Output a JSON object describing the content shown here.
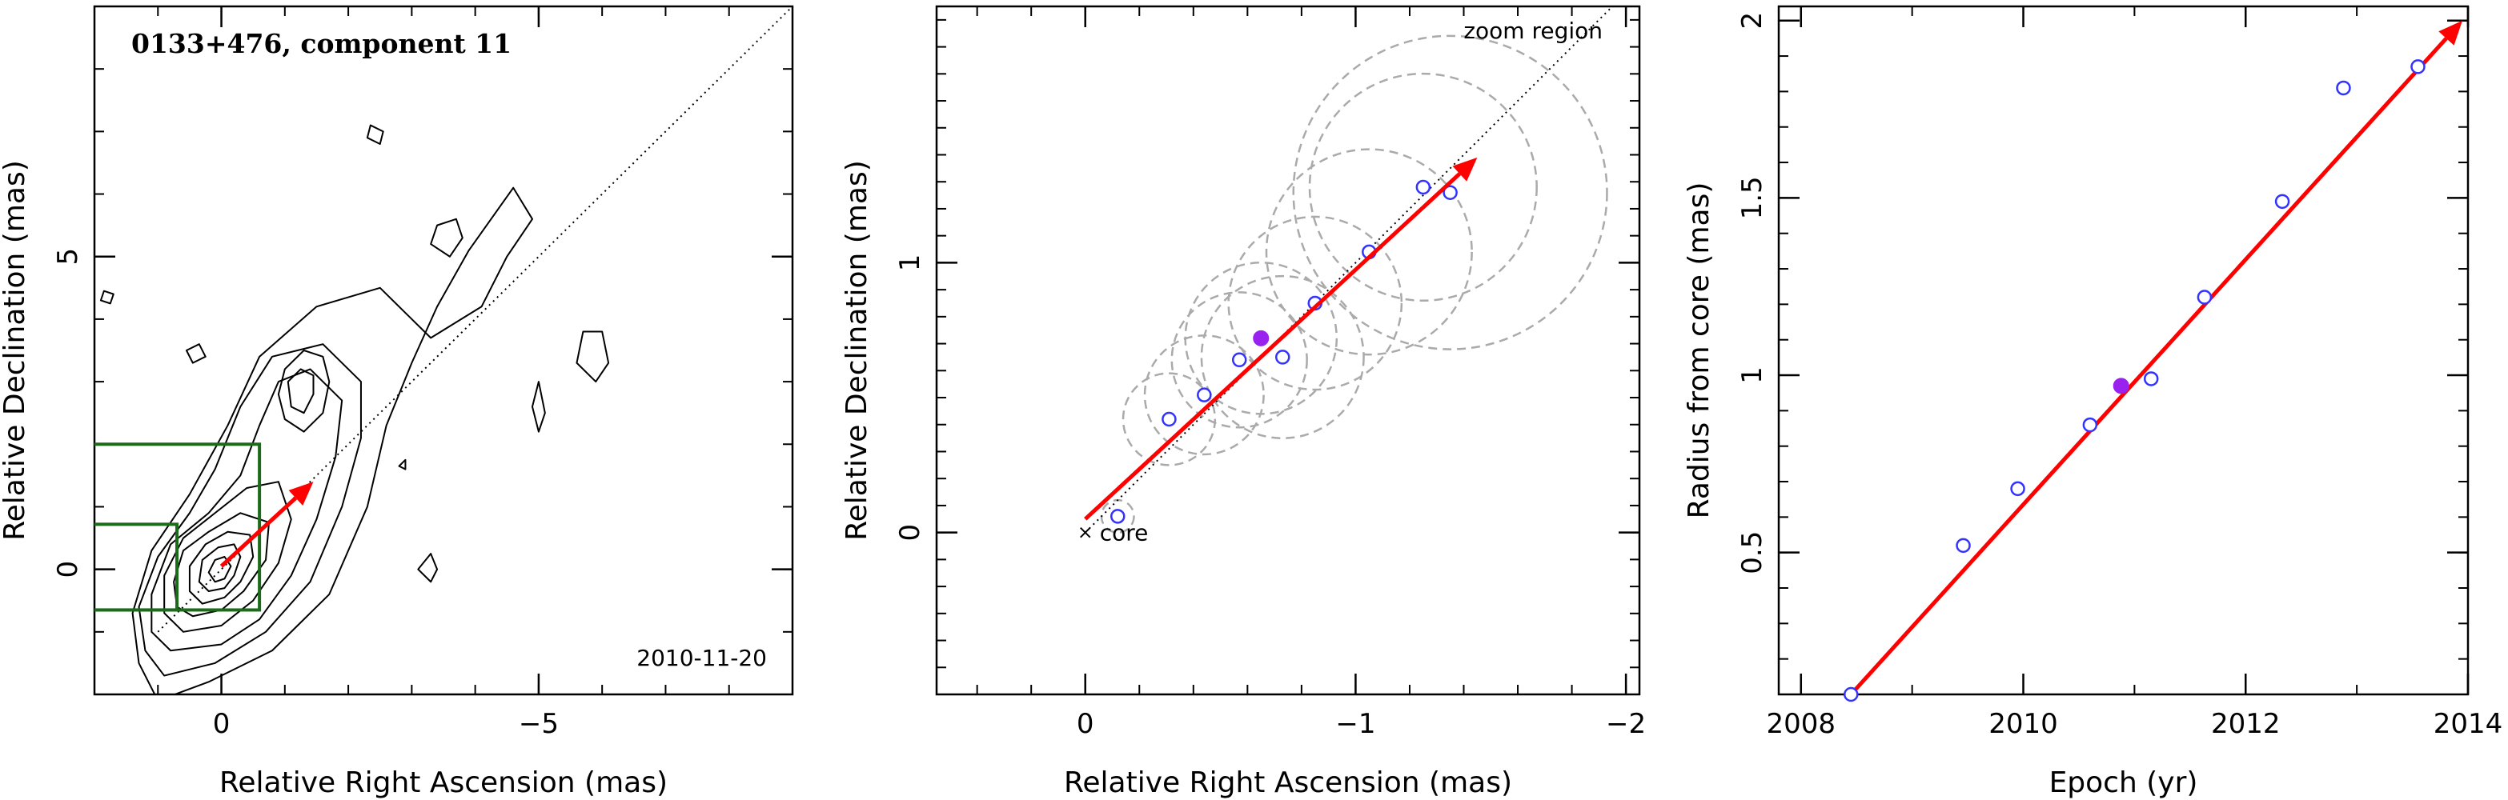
{
  "chart_data": [
    {
      "type": "contour",
      "title": "0133+476, component 11",
      "date": "2010-11-20",
      "xlabel": "Relative Right Ascension (mas)",
      "ylabel": "Relative Declination (mas)",
      "xlim": [
        2,
        -9
      ],
      "ylim": [
        -2,
        9
      ],
      "xticks": [
        0,
        -5
      ],
      "xtick_labels": [
        "0",
        "−5"
      ],
      "yticks": [
        0,
        5
      ],
      "ytick_labels": [
        "0",
        "5"
      ],
      "line_color": "#000000",
      "box_color": "#1b6b1b",
      "arrow_color": "#ff0000",
      "contours": [
        {
          "points": [
            [
              1.0,
              -2.1
            ],
            [
              0.2,
              -1.8
            ],
            [
              -0.8,
              -1.3
            ],
            [
              -1.7,
              -0.4
            ],
            [
              -2.3,
              1.0
            ],
            [
              -2.6,
              2.3
            ],
            [
              -3.0,
              3.3
            ],
            [
              -3.4,
              4.2
            ],
            [
              -3.9,
              5.1
            ],
            [
              -4.6,
              6.1
            ],
            [
              -4.9,
              5.6
            ],
            [
              -4.5,
              5.0
            ],
            [
              -4.1,
              4.2
            ],
            [
              -3.3,
              3.7
            ],
            [
              -2.5,
              4.5
            ],
            [
              -1.5,
              4.2
            ],
            [
              -0.6,
              3.4
            ],
            [
              -0.1,
              2.3
            ],
            [
              0.5,
              1.2
            ],
            [
              1.1,
              0.3
            ],
            [
              1.4,
              -0.7
            ],
            [
              1.3,
              -1.5
            ]
          ]
        },
        {
          "points": [
            [
              0.9,
              -1.7
            ],
            [
              0.1,
              -1.5
            ],
            [
              -0.7,
              -1.0
            ],
            [
              -1.4,
              -0.2
            ],
            [
              -1.9,
              1.0
            ],
            [
              -2.2,
              2.1
            ],
            [
              -2.2,
              3.0
            ],
            [
              -1.6,
              3.6
            ],
            [
              -0.8,
              3.4
            ],
            [
              -0.3,
              2.6
            ],
            [
              0.1,
              1.6
            ],
            [
              0.5,
              0.9
            ],
            [
              1.0,
              0.2
            ],
            [
              1.3,
              -0.6
            ],
            [
              1.2,
              -1.3
            ]
          ]
        },
        {
          "points": [
            [
              0.8,
              -1.3
            ],
            [
              0.0,
              -1.2
            ],
            [
              -0.6,
              -0.8
            ],
            [
              -1.1,
              -0.1
            ],
            [
              -1.5,
              0.8
            ],
            [
              -1.8,
              1.8
            ],
            [
              -1.9,
              2.7
            ],
            [
              -1.4,
              3.2
            ],
            [
              -0.9,
              3.0
            ],
            [
              -0.6,
              2.3
            ],
            [
              -0.3,
              1.5
            ],
            [
              0.2,
              0.9
            ],
            [
              0.8,
              0.4
            ],
            [
              1.1,
              -0.4
            ],
            [
              1.1,
              -1.0
            ]
          ]
        },
        {
          "points": [
            [
              0.6,
              -1.0
            ],
            [
              0.0,
              -0.9
            ],
            [
              -0.5,
              -0.5
            ],
            [
              -0.9,
              0.1
            ],
            [
              -1.1,
              0.8
            ],
            [
              -0.9,
              1.4
            ],
            [
              -0.4,
              1.3
            ],
            [
              0.1,
              0.9
            ],
            [
              0.6,
              0.5
            ],
            [
              0.9,
              -0.1
            ],
            [
              0.9,
              -0.7
            ]
          ]
        },
        {
          "points": [
            [
              0.45,
              -0.75
            ],
            [
              0.0,
              -0.65
            ],
            [
              -0.35,
              -0.35
            ],
            [
              -0.7,
              0.15
            ],
            [
              -0.75,
              0.75
            ],
            [
              -0.3,
              0.9
            ],
            [
              0.2,
              0.6
            ],
            [
              0.6,
              0.3
            ],
            [
              0.75,
              -0.2
            ],
            [
              0.7,
              -0.6
            ]
          ]
        },
        {
          "points": [
            [
              0.3,
              -0.55
            ],
            [
              -0.05,
              -0.45
            ],
            [
              -0.3,
              -0.2
            ],
            [
              -0.5,
              0.2
            ],
            [
              -0.45,
              0.55
            ],
            [
              -0.1,
              0.6
            ],
            [
              0.25,
              0.4
            ],
            [
              0.5,
              0.05
            ],
            [
              0.5,
              -0.35
            ]
          ]
        },
        {
          "points": [
            [
              0.2,
              -0.35
            ],
            [
              -0.05,
              -0.3
            ],
            [
              -0.2,
              -0.1
            ],
            [
              -0.3,
              0.2
            ],
            [
              -0.2,
              0.4
            ],
            [
              0.05,
              0.35
            ],
            [
              0.3,
              0.15
            ],
            [
              0.35,
              -0.2
            ]
          ]
        },
        {
          "points": [
            [
              0.1,
              -0.2
            ],
            [
              -0.05,
              -0.15
            ],
            [
              -0.15,
              0.05
            ],
            [
              -0.05,
              0.2
            ],
            [
              0.1,
              0.15
            ],
            [
              0.2,
              -0.05
            ]
          ]
        },
        {
          "points": [
            [
              -1.0,
              2.4
            ],
            [
              -1.3,
              2.2
            ],
            [
              -1.6,
              2.5
            ],
            [
              -1.7,
              3.0
            ],
            [
              -1.6,
              3.4
            ],
            [
              -1.3,
              3.5
            ],
            [
              -1.0,
              3.2
            ],
            [
              -0.9,
              2.8
            ]
          ]
        },
        {
          "points": [
            [
              -1.1,
              2.6
            ],
            [
              -1.3,
              2.5
            ],
            [
              -1.45,
              2.8
            ],
            [
              -1.45,
              3.1
            ],
            [
              -1.25,
              3.2
            ],
            [
              -1.05,
              3.0
            ]
          ]
        },
        {
          "points": [
            [
              -3.3,
              5.2
            ],
            [
              -3.6,
              5.0
            ],
            [
              -3.8,
              5.3
            ],
            [
              -3.7,
              5.6
            ],
            [
              -3.4,
              5.5
            ]
          ]
        },
        {
          "points": [
            [
              1.9,
              4.3
            ],
            [
              1.75,
              4.25
            ],
            [
              1.7,
              4.4
            ],
            [
              1.85,
              4.45
            ]
          ]
        },
        {
          "points": [
            [
              0.25,
              3.4
            ],
            [
              0.45,
              3.3
            ],
            [
              0.55,
              3.5
            ],
            [
              0.35,
              3.6
            ]
          ]
        },
        {
          "points": [
            [
              -5.6,
              3.3
            ],
            [
              -5.9,
              3.0
            ],
            [
              -6.1,
              3.3
            ],
            [
              -6.0,
              3.8
            ],
            [
              -5.7,
              3.8
            ]
          ]
        },
        {
          "points": [
            [
              -4.9,
              2.6
            ],
            [
              -5.0,
              2.2
            ],
            [
              -5.1,
              2.5
            ],
            [
              -5.0,
              3.0
            ]
          ]
        },
        {
          "points": [
            [
              -3.1,
              0.0
            ],
            [
              -3.3,
              -0.2
            ],
            [
              -3.4,
              0.0
            ],
            [
              -3.3,
              0.25
            ]
          ]
        },
        {
          "points": [
            [
              -2.3,
              6.9
            ],
            [
              -2.5,
              6.8
            ],
            [
              -2.55,
              7.0
            ],
            [
              -2.35,
              7.1
            ]
          ]
        },
        {
          "points": [
            [
              -2.8,
              1.65
            ],
            [
              -2.9,
              1.6
            ],
            [
              -2.9,
              1.75
            ]
          ]
        }
      ],
      "boxes": [
        [
          -0.6,
          -0.65,
          2.05,
          2.0
        ],
        [
          0.7,
          -0.65,
          2.05,
          0.72
        ]
      ],
      "ridge_line": {
        "from": [
          1.0,
          -1.0
        ],
        "to": [
          -9.0,
          9.0
        ]
      },
      "arrow": {
        "from": [
          0.0,
          0.05
        ],
        "to": [
          -1.45,
          1.4
        ]
      }
    },
    {
      "type": "scatter",
      "annotation_zoom": "zoom region",
      "annotation_core": "core",
      "xlabel": "Relative Right Ascension (mas)",
      "ylabel": "Relative Declination (mas)",
      "xlim": [
        0.55,
        -2.05
      ],
      "ylim": [
        -0.6,
        1.95
      ],
      "xticks": [
        0,
        -1,
        -2
      ],
      "xtick_labels": [
        "0",
        "−1",
        "−2"
      ],
      "yticks": [
        0,
        1
      ],
      "ytick_labels": [
        "0",
        "1"
      ],
      "point_color": "#3333ff",
      "highlight_color": "#9922ee",
      "circle_color": "#aaaaaa",
      "arrow_color": "#ff0000",
      "points": [
        {
          "x": -0.12,
          "y": 0.06,
          "r": 0.06
        },
        {
          "x": -0.31,
          "y": 0.42,
          "r": 0.17
        },
        {
          "x": -0.44,
          "y": 0.51,
          "r": 0.22
        },
        {
          "x": -0.57,
          "y": 0.64,
          "r": 0.25
        },
        {
          "x": -0.73,
          "y": 0.65,
          "r": 0.3
        },
        {
          "x": -0.85,
          "y": 0.85,
          "r": 0.32
        },
        {
          "x": -1.05,
          "y": 1.04,
          "r": 0.38
        },
        {
          "x": -1.25,
          "y": 1.28,
          "r": 0.42
        },
        {
          "x": -1.35,
          "y": 1.26,
          "r": 0.58
        }
      ],
      "highlight": {
        "x": -0.65,
        "y": 0.72,
        "r": 0.28
      },
      "core_marker": {
        "x": 0.0,
        "y": 0.0
      },
      "ridge_line": {
        "from": [
          0.0,
          0.0
        ],
        "to": [
          -2.1,
          2.1
        ]
      },
      "arrow": {
        "from": [
          0.0,
          0.05
        ],
        "to": [
          -1.45,
          1.39
        ]
      }
    },
    {
      "type": "scatter",
      "xlabel": "Epoch (yr)",
      "ylabel": "Radius from core (mas)",
      "xlim": [
        2007.8,
        2014.0
      ],
      "ylim": [
        0.1,
        2.04
      ],
      "xticks": [
        2008,
        2010,
        2012,
        2014
      ],
      "xtick_labels": [
        "2008",
        "2010",
        "2012",
        "2014"
      ],
      "yticks": [
        0.5,
        1,
        1.5,
        2
      ],
      "ytick_labels": [
        "0.5",
        "1",
        "1.5",
        "2"
      ],
      "point_color": "#3333ff",
      "highlight_color": "#9922ee",
      "arrow_color": "#ff0000",
      "points": [
        {
          "x": 2008.45,
          "y": 0.1
        },
        {
          "x": 2009.46,
          "y": 0.52
        },
        {
          "x": 2009.95,
          "y": 0.68
        },
        {
          "x": 2010.6,
          "y": 0.86
        },
        {
          "x": 2011.15,
          "y": 0.99
        },
        {
          "x": 2011.63,
          "y": 1.22
        },
        {
          "x": 2012.33,
          "y": 1.49
        },
        {
          "x": 2012.88,
          "y": 1.81
        },
        {
          "x": 2013.55,
          "y": 1.87
        }
      ],
      "highlight": {
        "x": 2010.88,
        "y": 0.97
      },
      "arrow": {
        "from": [
          2008.45,
          0.1
        ],
        "to": [
          2013.95,
          2.0
        ]
      }
    }
  ]
}
